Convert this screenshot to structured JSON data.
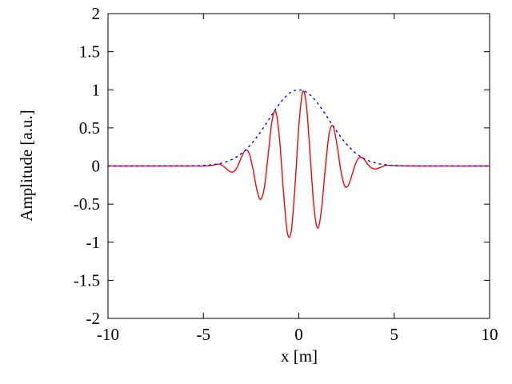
{
  "chart_data": {
    "type": "line",
    "x_label": "x [m]",
    "y_label": "Amplitude [a.u.]",
    "xlim": [
      -10,
      10
    ],
    "ylim": [
      -2,
      2
    ],
    "xticks": [
      -10,
      -5,
      0,
      5,
      10
    ],
    "yticks": [
      -2,
      -1.5,
      -1,
      -0.5,
      0,
      0.5,
      1,
      1.5,
      2
    ],
    "grid": false,
    "x": [
      -10,
      -6,
      -5,
      -4.6,
      -4.2,
      -4.0,
      -3.8,
      -3.6,
      -3.4,
      -3.2,
      -3.0,
      -2.8,
      -2.6,
      -2.4,
      -2.2,
      -2.0,
      -1.8,
      -1.6,
      -1.4,
      -1.2,
      -1.0,
      -0.8,
      -0.6,
      -0.4,
      -0.2,
      0,
      0.2,
      0.4,
      0.6,
      0.8,
      1.0,
      1.2,
      1.4,
      1.6,
      1.8,
      2.0,
      2.2,
      2.4,
      2.6,
      2.8,
      3.0,
      3.2,
      3.4,
      3.6,
      3.8,
      4.0,
      4.2,
      4.6,
      5,
      6,
      10
    ],
    "series": [
      {
        "color": "#ff0000",
        "style": "solid",
        "values": [
          0,
          0,
          -0.001,
          0.007,
          0.024,
          0.006,
          -0.035,
          -0.075,
          -0.073,
          -0.001,
          0.12,
          0.208,
          0.165,
          -0.041,
          -0.309,
          -0.44,
          -0.274,
          0.159,
          0.599,
          0.707,
          0.328,
          -0.348,
          -0.875,
          -0.861,
          -0.269,
          0.519,
          0.971,
          0.792,
          0.126,
          -0.556,
          -0.817,
          -0.544,
          0.001,
          0.439,
          0.521,
          0.282,
          -0.054,
          -0.259,
          -0.253,
          -0.107,
          0.046,
          0.115,
          0.093,
          0.029,
          -0.023,
          -0.039,
          -0.026,
          0.008,
          0.005,
          0,
          0
        ]
      },
      {
        "color": "#0000ff",
        "style": "dashed",
        "values": [
          0,
          0.001,
          0.007,
          0.015,
          0.029,
          0.041,
          0.056,
          0.075,
          0.099,
          0.129,
          0.165,
          0.208,
          0.259,
          0.316,
          0.38,
          0.449,
          0.523,
          0.599,
          0.676,
          0.75,
          0.819,
          0.88,
          0.931,
          0.969,
          0.992,
          1,
          0.992,
          0.969,
          0.931,
          0.88,
          0.819,
          0.75,
          0.676,
          0.599,
          0.523,
          0.449,
          0.38,
          0.316,
          0.259,
          0.208,
          0.165,
          0.129,
          0.099,
          0.075,
          0.056,
          0.041,
          0.029,
          0.015,
          0.007,
          0.001,
          0
        ]
      }
    ]
  }
}
